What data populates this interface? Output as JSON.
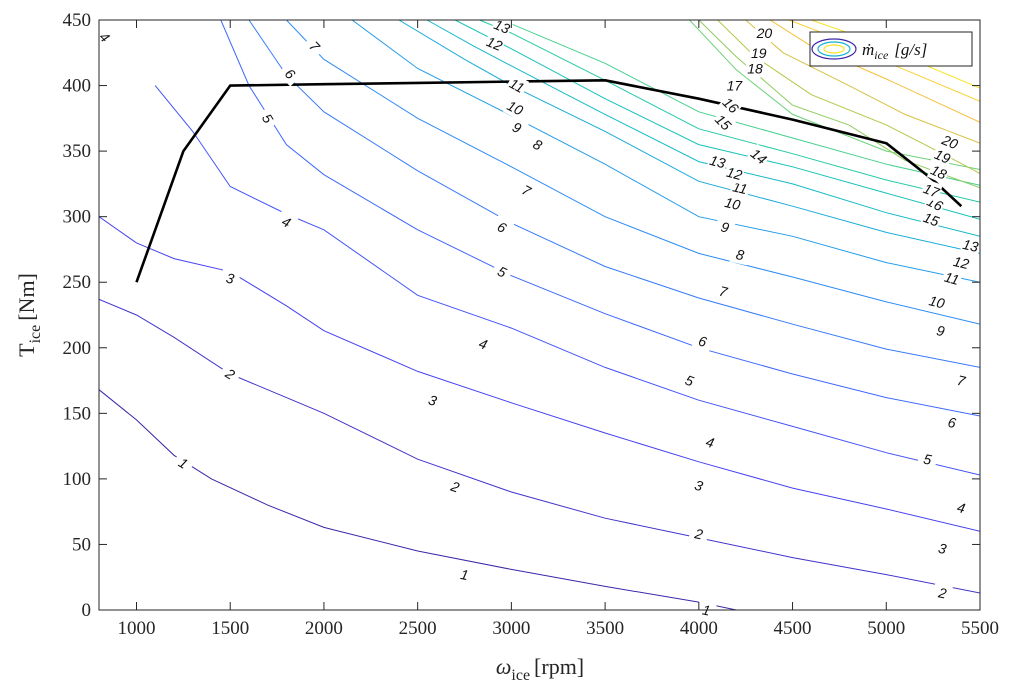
{
  "chart_data": {
    "type": "contour",
    "xlabel": "ω",
    "xlabel_sub": "ice",
    "xlabel_unit": "[rpm]",
    "ylabel": "T",
    "ylabel_sub": "ice",
    "ylabel_unit": "[Nm]",
    "xlim": [
      800,
      5500
    ],
    "ylim": [
      0,
      450
    ],
    "xticks": [
      1000,
      1500,
      2000,
      2500,
      3000,
      3500,
      4000,
      4500,
      5000,
      5500
    ],
    "yticks": [
      0,
      50,
      100,
      150,
      200,
      250,
      300,
      350,
      400,
      450
    ],
    "legend": {
      "label": "ṁ",
      "label_sub": "ice",
      "label_unit": "[g/s]",
      "position": "top-right"
    },
    "colormap": [
      "#3e26a8",
      "#4743f5",
      "#3d6cfe",
      "#2a92f2",
      "#16b2d3",
      "#15c8b0",
      "#5dd37e",
      "#b0c64a",
      "#f6bc3a",
      "#f9e326"
    ],
    "levels": [
      {
        "value": 1,
        "points": [
          [
            800,
            168
          ],
          [
            1000,
            145
          ],
          [
            1200,
            118
          ],
          [
            1400,
            100
          ],
          [
            1700,
            80
          ],
          [
            2000,
            63
          ],
          [
            2500,
            45
          ],
          [
            3000,
            31
          ],
          [
            3500,
            18
          ],
          [
            4000,
            6
          ],
          [
            4200,
            0
          ]
        ],
        "labels": [
          [
            1250,
            112
          ],
          [
            2750,
            27
          ],
          [
            4040,
            0
          ]
        ]
      },
      {
        "value": 2,
        "points": [
          [
            800,
            237
          ],
          [
            1000,
            225
          ],
          [
            1200,
            208
          ],
          [
            1500,
            180
          ],
          [
            1800,
            162
          ],
          [
            2000,
            150
          ],
          [
            2500,
            115
          ],
          [
            3000,
            90
          ],
          [
            3500,
            70
          ],
          [
            4000,
            55
          ],
          [
            4500,
            40
          ],
          [
            5000,
            27
          ],
          [
            5500,
            13
          ]
        ],
        "labels": [
          [
            1500,
            180
          ],
          [
            2700,
            94
          ],
          [
            4000,
            58
          ],
          [
            5300,
            13
          ]
        ]
      },
      {
        "value": 3,
        "points": [
          [
            800,
            300
          ],
          [
            1000,
            280
          ],
          [
            1200,
            268
          ],
          [
            1500,
            258
          ],
          [
            1800,
            232
          ],
          [
            2000,
            213
          ],
          [
            2500,
            182
          ],
          [
            3000,
            158
          ],
          [
            3500,
            135
          ],
          [
            4000,
            113
          ],
          [
            4500,
            93
          ],
          [
            5000,
            77
          ],
          [
            5500,
            60
          ]
        ],
        "labels": [
          [
            1500,
            253
          ],
          [
            2580,
            160
          ],
          [
            4000,
            95
          ],
          [
            5300,
            47
          ]
        ]
      },
      {
        "value": 4,
        "points": [
          [
            1100,
            400
          ],
          [
            1300,
            365
          ],
          [
            1500,
            323
          ],
          [
            1800,
            302
          ],
          [
            2000,
            290
          ],
          [
            2500,
            240
          ],
          [
            3000,
            215
          ],
          [
            3500,
            185
          ],
          [
            4000,
            160
          ],
          [
            4500,
            140
          ],
          [
            5000,
            120
          ],
          [
            5500,
            103
          ]
        ],
        "labels": [
          [
            1800,
            296
          ],
          [
            2850,
            203
          ],
          [
            4060,
            128
          ],
          [
            5400,
            78
          ]
        ]
      },
      {
        "value": 5,
        "points": [
          [
            1450,
            450
          ],
          [
            1600,
            400
          ],
          [
            1800,
            355
          ],
          [
            2000,
            332
          ],
          [
            2500,
            290
          ],
          [
            3000,
            255
          ],
          [
            3500,
            226
          ],
          [
            4000,
            200
          ],
          [
            4500,
            180
          ],
          [
            5000,
            162
          ],
          [
            5500,
            148
          ]
        ],
        "labels": [
          [
            1700,
            375
          ],
          [
            2950,
            258
          ],
          [
            3950,
            175
          ],
          [
            5220,
            115
          ]
        ]
      },
      {
        "value": 6,
        "points": [
          [
            1600,
            450
          ],
          [
            1800,
            408
          ],
          [
            2000,
            380
          ],
          [
            2500,
            335
          ],
          [
            3000,
            295
          ],
          [
            3500,
            262
          ],
          [
            4000,
            238
          ],
          [
            4500,
            218
          ],
          [
            5000,
            199
          ],
          [
            5500,
            185
          ]
        ],
        "labels": [
          [
            1820,
            409
          ],
          [
            2950,
            292
          ],
          [
            4020,
            205
          ],
          [
            5350,
            143
          ]
        ]
      },
      {
        "value": 7,
        "points": [
          [
            1800,
            450
          ],
          [
            2000,
            420
          ],
          [
            2500,
            375
          ],
          [
            3000,
            338
          ],
          [
            3500,
            300
          ],
          [
            4000,
            272
          ],
          [
            4500,
            254
          ],
          [
            5000,
            235
          ],
          [
            5500,
            218
          ]
        ],
        "labels": [
          [
            1950,
            430
          ],
          [
            3080,
            320
          ],
          [
            4130,
            243
          ],
          [
            5400,
            175
          ]
        ]
      },
      {
        "value": 8,
        "points": [
          [
            2150,
            450
          ],
          [
            2500,
            413
          ],
          [
            3000,
            377
          ],
          [
            3500,
            340
          ],
          [
            4000,
            300
          ],
          [
            4500,
            285
          ],
          [
            5000,
            265
          ],
          [
            5500,
            250
          ]
        ],
        "labels": [
          [
            3140,
            355
          ],
          [
            4220,
            271
          ]
        ]
      },
      {
        "value": 9,
        "points": [
          [
            2400,
            450
          ],
          [
            2750,
            420
          ],
          [
            3000,
            400
          ],
          [
            3500,
            365
          ],
          [
            4000,
            327
          ],
          [
            4500,
            308
          ],
          [
            5000,
            288
          ],
          [
            5500,
            272
          ]
        ],
        "labels": [
          [
            3030,
            368
          ],
          [
            4140,
            292
          ],
          [
            5290,
            213
          ]
        ]
      },
      {
        "value": 10,
        "points": [
          [
            2550,
            450
          ],
          [
            2800,
            430
          ],
          [
            3000,
            415
          ],
          [
            3500,
            378
          ],
          [
            4000,
            342
          ],
          [
            4500,
            325
          ],
          [
            5000,
            303
          ],
          [
            5500,
            285
          ]
        ],
        "labels": [
          [
            3020,
            383
          ],
          [
            4180,
            310
          ],
          [
            5270,
            235
          ]
        ]
      },
      {
        "value": 11,
        "points": [
          [
            2700,
            450
          ],
          [
            3000,
            428
          ],
          [
            3500,
            390
          ],
          [
            4000,
            355
          ],
          [
            4500,
            338
          ],
          [
            5000,
            318
          ],
          [
            5500,
            298
          ]
        ],
        "labels": [
          [
            3030,
            400
          ],
          [
            4220,
            322
          ],
          [
            5350,
            253
          ]
        ]
      },
      {
        "value": 12,
        "points": [
          [
            2830,
            450
          ],
          [
            3000,
            440
          ],
          [
            3500,
            404
          ],
          [
            4000,
            367
          ],
          [
            4500,
            348
          ],
          [
            5000,
            328
          ],
          [
            5500,
            311
          ]
        ],
        "labels": [
          [
            2910,
            432
          ],
          [
            4190,
            333
          ],
          [
            5400,
            265
          ]
        ]
      },
      {
        "value": 13,
        "points": [
          [
            2950,
            450
          ],
          [
            3500,
            417
          ],
          [
            4000,
            380
          ],
          [
            4500,
            360
          ],
          [
            5000,
            340
          ],
          [
            5500,
            324
          ]
        ],
        "labels": [
          [
            2950,
            445
          ],
          [
            4100,
            342
          ],
          [
            5450,
            278
          ]
        ]
      },
      {
        "value": 14,
        "points": [
          [
            3950,
            450
          ],
          [
            4200,
            412
          ],
          [
            4500,
            378
          ],
          [
            5000,
            350
          ],
          [
            5500,
            336
          ]
        ],
        "labels": [
          [
            4320,
            346
          ]
        ]
      },
      {
        "value": 15,
        "points": [
          [
            4000,
            450
          ],
          [
            4200,
            422
          ],
          [
            4500,
            385
          ],
          [
            4800,
            370
          ],
          [
            5100,
            343
          ],
          [
            5500,
            322
          ]
        ],
        "labels": [
          [
            4130,
            372
          ],
          [
            5240,
            298
          ]
        ]
      },
      {
        "value": 16,
        "points": [
          [
            4100,
            450
          ],
          [
            4300,
            422
          ],
          [
            4600,
            393
          ],
          [
            5000,
            370
          ],
          [
            5300,
            348
          ],
          [
            5500,
            333
          ]
        ],
        "labels": [
          [
            4170,
            385
          ],
          [
            5260,
            310
          ]
        ]
      },
      {
        "value": 17,
        "points": [
          [
            4250,
            450
          ],
          [
            4450,
            425
          ],
          [
            4800,
            400
          ],
          [
            5100,
            378
          ],
          [
            5500,
            356
          ]
        ],
        "labels": [
          [
            4190,
            400
          ],
          [
            5240,
            320
          ]
        ]
      },
      {
        "value": 18,
        "points": [
          [
            4380,
            450
          ],
          [
            4600,
            430
          ],
          [
            5000,
            405
          ],
          [
            5500,
            372
          ]
        ],
        "labels": [
          [
            4300,
            413
          ],
          [
            5280,
            334
          ]
        ]
      },
      {
        "value": 19,
        "points": [
          [
            4480,
            450
          ],
          [
            4700,
            438
          ],
          [
            5000,
            418
          ],
          [
            5500,
            388
          ]
        ],
        "labels": [
          [
            4320,
            425
          ],
          [
            5300,
            346
          ]
        ]
      },
      {
        "value": 20,
        "points": [
          [
            4600,
            450
          ],
          [
            4800,
            440
          ],
          [
            5000,
            428
          ],
          [
            5500,
            398
          ]
        ],
        "labels": [
          [
            4350,
            440
          ],
          [
            5340,
            357
          ]
        ]
      }
    ],
    "boundary_line": {
      "name": "max torque curve",
      "color": "#000000",
      "points": [
        [
          1000,
          250
        ],
        [
          1250,
          350
        ],
        [
          1500,
          400
        ],
        [
          2000,
          401
        ],
        [
          2500,
          402
        ],
        [
          3000,
          403
        ],
        [
          3500,
          404
        ],
        [
          4000,
          390
        ],
        [
          4500,
          374
        ],
        [
          5000,
          356
        ],
        [
          5250,
          328
        ],
        [
          5400,
          308
        ]
      ]
    },
    "extra_labels": [
      {
        "value": 4,
        "x": 830,
        "y": 437
      }
    ],
    "grid": false
  }
}
